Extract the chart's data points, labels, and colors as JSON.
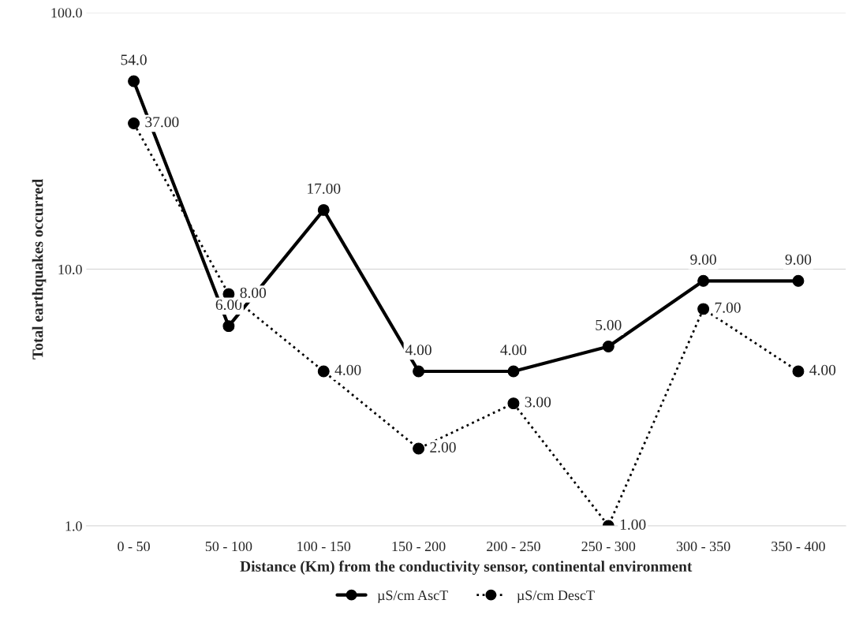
{
  "chart_data": {
    "type": "line",
    "xlabel": "Distance (Km) from the conductivity sensor, continental environment",
    "ylabel": "Total earthquakes occurred",
    "categories": [
      "0 - 50",
      "50 - 100",
      "100 - 150",
      "150 - 200",
      "200 - 250",
      "250 - 300",
      "300 - 350",
      "350 - 400"
    ],
    "series": [
      {
        "name": "µS/cm AscT",
        "color": "#000000",
        "line_style": "solid",
        "values": [
          54,
          6,
          17,
          4,
          4,
          5,
          9,
          9
        ],
        "value_labels": [
          "54.0",
          "6.00",
          "17.00",
          "4.00",
          "4.00",
          "5.00",
          "9.00",
          "9.00"
        ]
      },
      {
        "name": "µS/cm DescT",
        "color": "#000000",
        "line_style": "dotted",
        "values": [
          37,
          8,
          4,
          2,
          3,
          1,
          7,
          4
        ],
        "value_labels": [
          "37.00",
          "8.00",
          "4.00",
          "2.00",
          "3.00",
          "1.00",
          "7.00",
          "4.00"
        ]
      }
    ],
    "log": true,
    "ylim": [
      1,
      100
    ],
    "yticks": [
      {
        "value": 1,
        "label": "1.0"
      },
      {
        "value": 10,
        "label": "10.0"
      },
      {
        "value": 100,
        "label": "100.0"
      }
    ],
    "grid": "y",
    "legend": "bottom",
    "marker": "circle"
  }
}
